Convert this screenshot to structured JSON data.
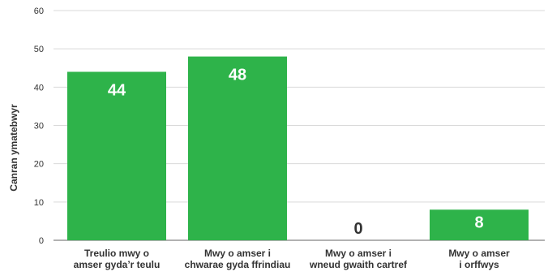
{
  "colors": {
    "bar": "#2eb34a",
    "grid": "#d9d9d9",
    "axis": "#666666",
    "label_inside": "#ffffff",
    "label_outside": "#333333"
  },
  "chart_data": {
    "type": "bar",
    "ylabel": "Canran ymatebwyr",
    "ylim": [
      0,
      60
    ],
    "yticks": [
      0,
      10,
      20,
      30,
      40,
      50,
      60
    ],
    "grid": true,
    "categories": [
      [
        "Treulio mwy o",
        "amser gyda’r teulu"
      ],
      [
        "Mwy o amser i",
        "chwarae gyda ffrindiau"
      ],
      [
        "Mwy o amser i",
        "wneud gwaith cartref"
      ],
      [
        "Mwy o amser",
        "i orffwys"
      ]
    ],
    "values": [
      44,
      48,
      0,
      8
    ]
  }
}
